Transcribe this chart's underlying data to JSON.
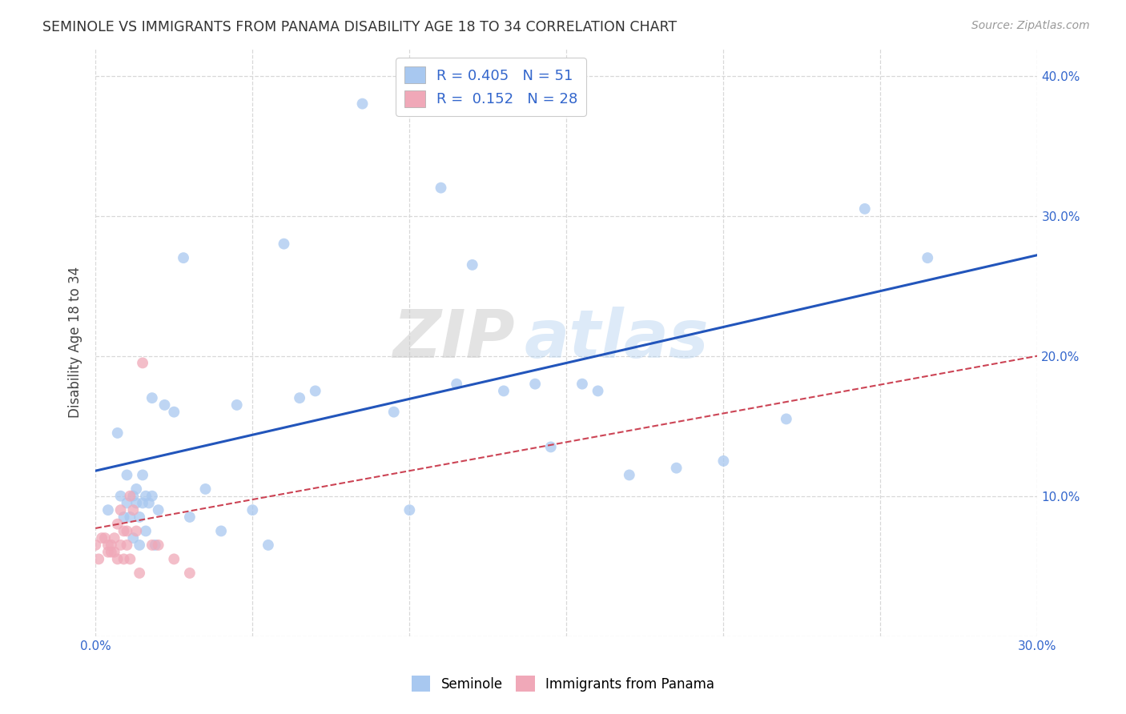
{
  "title": "SEMINOLE VS IMMIGRANTS FROM PANAMA DISABILITY AGE 18 TO 34 CORRELATION CHART",
  "source": "Source: ZipAtlas.com",
  "ylabel": "Disability Age 18 to 34",
  "xlim": [
    0.0,
    0.3
  ],
  "ylim": [
    0.0,
    0.42
  ],
  "xticks": [
    0.0,
    0.05,
    0.1,
    0.15,
    0.2,
    0.25,
    0.3
  ],
  "yticks": [
    0.0,
    0.1,
    0.2,
    0.3,
    0.4
  ],
  "background_color": "#ffffff",
  "grid_color": "#d8d8d8",
  "watermark_zip": "ZIP",
  "watermark_atlas": "atlas",
  "legend_R1": "0.405",
  "legend_N1": "51",
  "legend_R2": "0.152",
  "legend_N2": "28",
  "blue_color": "#a8c8f0",
  "pink_color": "#f0a8b8",
  "line_blue": "#2255bb",
  "line_pink": "#cc4455",
  "seminole_x": [
    0.004,
    0.007,
    0.008,
    0.009,
    0.01,
    0.01,
    0.011,
    0.012,
    0.012,
    0.013,
    0.013,
    0.014,
    0.014,
    0.015,
    0.015,
    0.016,
    0.016,
    0.017,
    0.018,
    0.018,
    0.019,
    0.02,
    0.022,
    0.025,
    0.028,
    0.03,
    0.035,
    0.04,
    0.045,
    0.05,
    0.055,
    0.06,
    0.065,
    0.07,
    0.085,
    0.095,
    0.1,
    0.11,
    0.115,
    0.12,
    0.13,
    0.14,
    0.145,
    0.155,
    0.16,
    0.17,
    0.185,
    0.2,
    0.22,
    0.245,
    0.265
  ],
  "seminole_y": [
    0.09,
    0.145,
    0.1,
    0.085,
    0.095,
    0.115,
    0.085,
    0.07,
    0.1,
    0.095,
    0.105,
    0.085,
    0.065,
    0.095,
    0.115,
    0.1,
    0.075,
    0.095,
    0.1,
    0.17,
    0.065,
    0.09,
    0.165,
    0.16,
    0.27,
    0.085,
    0.105,
    0.075,
    0.165,
    0.09,
    0.065,
    0.28,
    0.17,
    0.175,
    0.38,
    0.16,
    0.09,
    0.32,
    0.18,
    0.265,
    0.175,
    0.18,
    0.135,
    0.18,
    0.175,
    0.115,
    0.12,
    0.125,
    0.155,
    0.305,
    0.27
  ],
  "panama_x": [
    0.0,
    0.001,
    0.002,
    0.003,
    0.004,
    0.004,
    0.005,
    0.005,
    0.006,
    0.006,
    0.007,
    0.007,
    0.008,
    0.008,
    0.009,
    0.009,
    0.01,
    0.01,
    0.011,
    0.011,
    0.012,
    0.013,
    0.014,
    0.015,
    0.018,
    0.02,
    0.025,
    0.03
  ],
  "panama_y": [
    0.065,
    0.055,
    0.07,
    0.07,
    0.06,
    0.065,
    0.06,
    0.065,
    0.06,
    0.07,
    0.055,
    0.08,
    0.065,
    0.09,
    0.075,
    0.055,
    0.065,
    0.075,
    0.055,
    0.1,
    0.09,
    0.075,
    0.045,
    0.195,
    0.065,
    0.065,
    0.055,
    0.045
  ]
}
